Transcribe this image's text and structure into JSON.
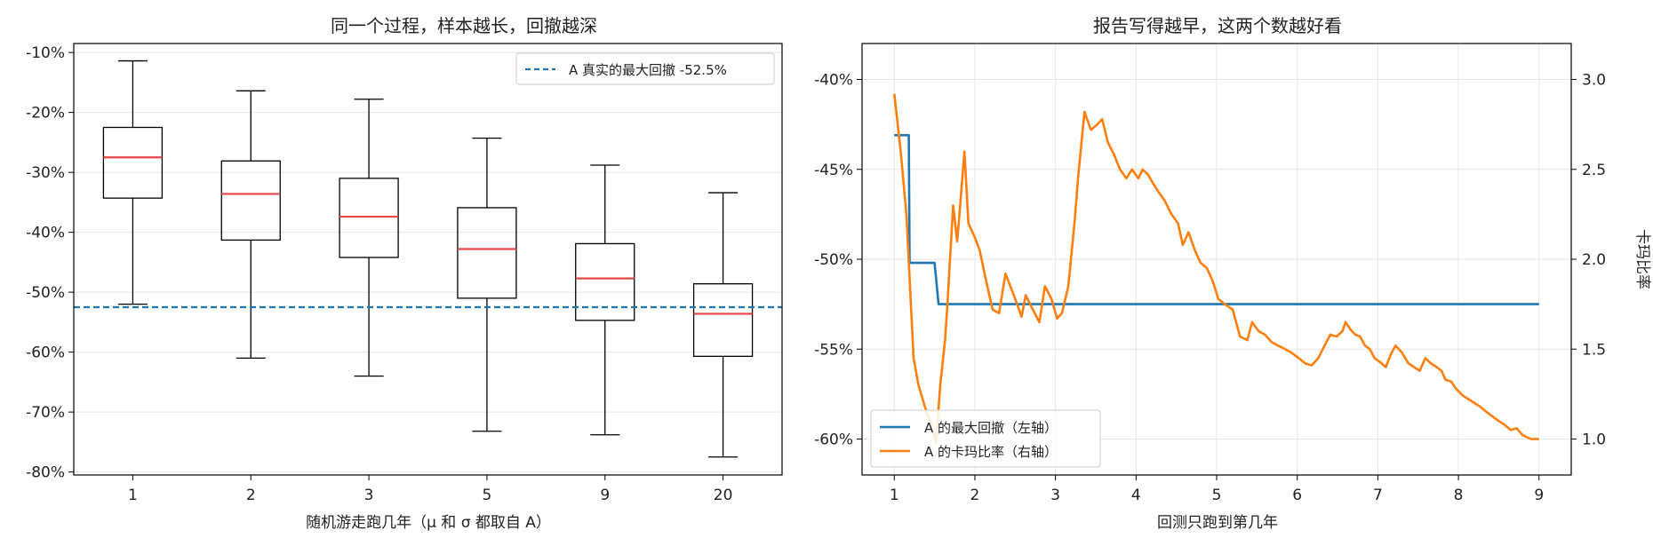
{
  "colors": {
    "box": "#000000",
    "median": "#e8474a",
    "true_dd_line": "#1f77b4",
    "mdd_series": "#1f77b4",
    "calmar_series": "#ff7f0e",
    "grid": "#e6e6e6"
  },
  "chart_data": [
    {
      "type": "box",
      "title": "同一个过程，样本越长，回撤越深",
      "xlabel": "随机游走跑几年（μ 和 σ 都取自 A）",
      "ylabel": "",
      "categories": [
        "1",
        "2",
        "3",
        "5",
        "9",
        "20"
      ],
      "y_tick_labels": [
        "-10%",
        "-20%",
        "-30%",
        "-40%",
        "-50%",
        "-60%",
        "-70%",
        "-80%"
      ],
      "ylim": [
        -80.5,
        -8.5
      ],
      "grid": "horizontal",
      "boxes": [
        {
          "whisker_low": -52.0,
          "q1": -34.3,
          "median": -27.5,
          "q3": -22.5,
          "whisker_high": -11.4
        },
        {
          "whisker_low": -61.0,
          "q1": -41.3,
          "median": -33.6,
          "q3": -28.1,
          "whisker_high": -16.4
        },
        {
          "whisker_low": -64.0,
          "q1": -44.2,
          "median": -37.4,
          "q3": -31.0,
          "whisker_high": -17.8
        },
        {
          "whisker_low": -73.2,
          "q1": -51.0,
          "median": -42.8,
          "q3": -35.9,
          "whisker_high": -24.3
        },
        {
          "whisker_low": -73.8,
          "q1": -54.7,
          "median": -47.7,
          "q3": -41.9,
          "whisker_high": -28.8
        },
        {
          "whisker_low": -77.5,
          "q1": -60.7,
          "median": -53.6,
          "q3": -48.6,
          "whisker_high": -33.4
        }
      ],
      "reference_line": {
        "value": -52.5,
        "label": "A 真实的最大回撤 -52.5%"
      },
      "legend_position": "top-right"
    },
    {
      "type": "line",
      "title": "报告写得越早，这两个数越好看",
      "xlabel": "回测只跑到第几年",
      "ylabel": "",
      "y2label": "卡玛比率",
      "xlim": [
        0.6,
        9.4
      ],
      "x_ticks": [
        "1",
        "2",
        "3",
        "4",
        "5",
        "6",
        "7",
        "8",
        "9"
      ],
      "ylim": [
        -62.0,
        -38.0
      ],
      "y_tick_labels": [
        "-40%",
        "-45%",
        "-50%",
        "-55%",
        "-60%"
      ],
      "y2lim": [
        0.8,
        3.2
      ],
      "y2_tick_labels": [
        "1.0",
        "1.5",
        "2.0",
        "2.5",
        "3.0"
      ],
      "grid": "both",
      "legend_position": "bottom-left",
      "series": [
        {
          "name": "A 的最大回撤（左轴）",
          "axis": "left",
          "x": [
            1.0,
            1.18,
            1.19,
            1.5,
            1.55,
            9.0
          ],
          "y": [
            -43.1,
            -43.1,
            -50.2,
            -50.2,
            -52.5,
            -52.5
          ]
        },
        {
          "name": "A 的卡玛比率（右轴）",
          "axis": "right",
          "x": [
            1.0,
            1.08,
            1.15,
            1.24,
            1.3,
            1.38,
            1.46,
            1.52,
            1.57,
            1.63,
            1.66,
            1.73,
            1.78,
            1.8,
            1.87,
            1.92,
            2.0,
            2.06,
            2.13,
            2.22,
            2.3,
            2.38,
            2.44,
            2.5,
            2.58,
            2.63,
            2.72,
            2.8,
            2.87,
            2.95,
            3.02,
            3.08,
            3.16,
            3.24,
            3.28,
            3.36,
            3.44,
            3.52,
            3.58,
            3.65,
            3.73,
            3.8,
            3.88,
            3.95,
            4.03,
            4.08,
            4.15,
            4.2,
            4.27,
            4.35,
            4.44,
            4.52,
            4.58,
            4.65,
            4.73,
            4.8,
            4.88,
            4.95,
            5.02,
            5.1,
            5.2,
            5.29,
            5.38,
            5.44,
            5.52,
            5.6,
            5.68,
            5.76,
            5.85,
            5.93,
            6.02,
            6.1,
            6.18,
            6.26,
            6.34,
            6.41,
            6.49,
            6.56,
            6.6,
            6.66,
            6.72,
            6.78,
            6.84,
            6.9,
            6.96,
            7.02,
            7.1,
            7.16,
            7.22,
            7.3,
            7.38,
            7.45,
            7.52,
            7.59,
            7.66,
            7.73,
            7.79,
            7.84,
            7.91,
            7.97,
            8.06,
            8.13,
            8.2,
            8.27,
            8.35,
            8.44,
            8.5,
            8.57,
            8.65,
            8.72,
            8.8,
            8.9,
            9.0
          ],
          "y": [
            2.92,
            2.6,
            2.25,
            1.45,
            1.3,
            1.18,
            1.08,
            0.98,
            1.3,
            1.55,
            1.75,
            2.3,
            2.1,
            2.2,
            2.6,
            2.2,
            2.12,
            2.05,
            1.9,
            1.72,
            1.7,
            1.92,
            1.85,
            1.78,
            1.68,
            1.8,
            1.72,
            1.65,
            1.85,
            1.78,
            1.67,
            1.7,
            1.85,
            2.22,
            2.45,
            2.82,
            2.72,
            2.75,
            2.78,
            2.65,
            2.58,
            2.5,
            2.45,
            2.5,
            2.45,
            2.5,
            2.47,
            2.43,
            2.38,
            2.33,
            2.25,
            2.2,
            2.08,
            2.15,
            2.05,
            1.98,
            1.95,
            1.88,
            1.78,
            1.75,
            1.72,
            1.57,
            1.55,
            1.65,
            1.6,
            1.58,
            1.54,
            1.52,
            1.5,
            1.48,
            1.45,
            1.42,
            1.41,
            1.45,
            1.52,
            1.58,
            1.57,
            1.6,
            1.65,
            1.61,
            1.58,
            1.57,
            1.52,
            1.5,
            1.45,
            1.43,
            1.4,
            1.47,
            1.52,
            1.48,
            1.42,
            1.4,
            1.38,
            1.45,
            1.42,
            1.4,
            1.38,
            1.33,
            1.32,
            1.28,
            1.24,
            1.22,
            1.2,
            1.18,
            1.15,
            1.12,
            1.1,
            1.08,
            1.05,
            1.06,
            1.02,
            1.0,
            1.0
          ]
        }
      ]
    }
  ]
}
